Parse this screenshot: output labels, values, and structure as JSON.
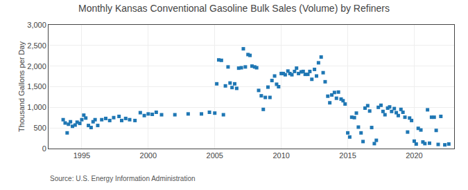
{
  "chart_data": {
    "type": "scatter",
    "title": "Monthly Kansas Conventional Gasoline Bulk Sales (Volume) by Refiners",
    "ylabel": "Thousand Gallons per Day",
    "annotations": [
      "Source: U.S. Energy Information Administration"
    ],
    "marker": "square",
    "grid": true,
    "xlim": [
      1992.5,
      2023.0
    ],
    "xticks": [
      1995,
      2000,
      2005,
      2010,
      2015,
      2020
    ],
    "ylim": [
      0,
      3000
    ],
    "yticks": [
      0,
      500,
      {
        "value": 1000,
        "label": "1,000"
      },
      {
        "value": 1500,
        "label": "1,500"
      },
      {
        "value": 2000,
        "label": "2,000"
      },
      {
        "value": 2500,
        "label": "2,500"
      },
      {
        "value": 3000,
        "label": "3,000"
      }
    ],
    "x": [
      1993.6,
      1993.75,
      1993.9,
      1994.0,
      1994.15,
      1994.3,
      1994.5,
      1994.65,
      1994.85,
      1995.0,
      1995.15,
      1995.3,
      1995.5,
      1995.7,
      1995.85,
      1996.0,
      1996.2,
      1996.5,
      1996.8,
      1997.1,
      1997.4,
      1997.8,
      1998.0,
      1998.3,
      1998.6,
      1999.0,
      1999.4,
      1999.7,
      2000.0,
      2000.3,
      2000.6,
      2001.0,
      2002.0,
      2003.0,
      2004.0,
      2004.6,
      2005.0,
      2005.15,
      2005.3,
      2005.5,
      2005.65,
      2005.8,
      2006.0,
      2006.15,
      2006.3,
      2006.5,
      2006.65,
      2006.8,
      2007.0,
      2007.15,
      2007.3,
      2007.5,
      2007.65,
      2007.8,
      2008.0,
      2008.15,
      2008.3,
      2008.5,
      2008.65,
      2008.8,
      2009.0,
      2009.15,
      2009.3,
      2009.5,
      2009.65,
      2009.8,
      2010.0,
      2010.15,
      2010.3,
      2010.5,
      2010.65,
      2010.8,
      2011.0,
      2011.15,
      2011.3,
      2011.5,
      2011.65,
      2011.8,
      2012.0,
      2012.15,
      2012.3,
      2012.5,
      2012.65,
      2012.8,
      2013.0,
      2013.15,
      2013.3,
      2013.5,
      2013.65,
      2013.8,
      2014.0,
      2014.15,
      2014.3,
      2014.5,
      2014.65,
      2014.8,
      2015.0,
      2015.15,
      2015.3,
      2015.5,
      2015.65,
      2015.8,
      2016.0,
      2016.15,
      2016.3,
      2016.5,
      2016.65,
      2016.8,
      2017.0,
      2017.15,
      2017.3,
      2017.5,
      2017.65,
      2017.8,
      2018.0,
      2018.15,
      2018.3,
      2018.5,
      2018.65,
      2018.8,
      2019.0,
      2019.15,
      2019.3,
      2019.5,
      2019.65,
      2019.8,
      2020.0,
      2020.15,
      2020.3,
      2020.5,
      2020.65,
      2020.8,
      2021.0,
      2021.15,
      2021.3,
      2021.5,
      2021.65,
      2021.8,
      2022.0,
      2022.3,
      2022.6
    ],
    "values": [
      700,
      620,
      380,
      590,
      650,
      540,
      570,
      640,
      610,
      700,
      810,
      740,
      560,
      510,
      650,
      700,
      560,
      700,
      730,
      680,
      750,
      780,
      680,
      730,
      700,
      680,
      870,
      800,
      840,
      830,
      880,
      820,
      820,
      840,
      840,
      880,
      860,
      1570,
      2150,
      2140,
      820,
      1520,
      1980,
      1590,
      1480,
      1570,
      1460,
      1950,
      1960,
      2420,
      1980,
      2280,
      2260,
      2000,
      1980,
      1960,
      1410,
      1280,
      950,
      1240,
      1490,
      1240,
      1650,
      1760,
      1560,
      1500,
      1820,
      1820,
      1790,
      1880,
      1820,
      1790,
      1870,
      1950,
      1820,
      1860,
      1870,
      1800,
      1800,
      1870,
      1680,
      1920,
      1760,
      2080,
      2220,
      1840,
      1620,
      1270,
      1110,
      1300,
      1360,
      1220,
      1370,
      1200,
      1160,
      1080,
      380,
      280,
      760,
      750,
      860,
      520,
      380,
      170,
      980,
      1040,
      910,
      510,
      120,
      200,
      1000,
      1050,
      900,
      820,
      980,
      1010,
      900,
      970,
      870,
      800,
      950,
      880,
      760,
      400,
      740,
      680,
      180,
      110,
      490,
      450,
      160,
      120,
      940,
      130,
      760,
      760,
      440,
      100,
      780,
      90,
      110
    ]
  }
}
